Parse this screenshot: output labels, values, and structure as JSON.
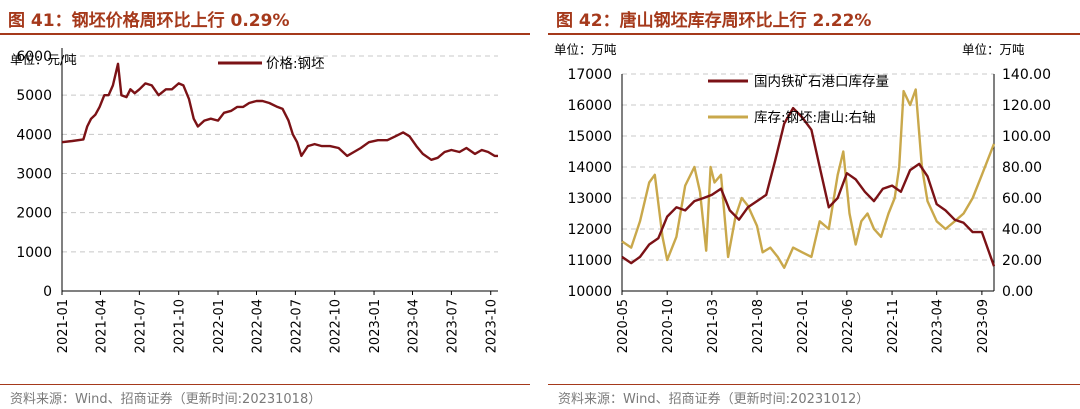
{
  "left": {
    "title": "图 41：钢坯价格周环比上行 0.29%",
    "source": "资料来源：Wind、招商证券（更新时间:20231018）",
    "accent": "#a5391b"
  },
  "right": {
    "title": "图 42：唐山钢坯库存周环比上行 2.22%",
    "source": "资料来源：Wind、招商证券（更新时间:20231012）",
    "accent": "#a5391b"
  },
  "chart_data": [
    {
      "type": "line",
      "title": "",
      "ylabel": "单位：元/吨",
      "ylim": [
        0,
        6000
      ],
      "yticks": [
        "0",
        "1000",
        "2000",
        "3000",
        "4000",
        "5000",
        "6000"
      ],
      "x_range": [
        "2021-01-01",
        "2023-10-18"
      ],
      "x_tick_labels": [
        "2021-01",
        "2021-04",
        "2021-07",
        "2021-10",
        "2022-01",
        "2022-04",
        "2022-07",
        "2022-10",
        "2023-01",
        "2023-04",
        "2023-07",
        "2023-10"
      ],
      "legend_position": "top-center",
      "grid": true,
      "series": [
        {
          "name": "价格:钢坯",
          "color": "#7b1216",
          "points": [
            [
              "2021-01-01",
              3800
            ],
            [
              "2021-01-25",
              3830
            ],
            [
              "2021-02-20",
              3870
            ],
            [
              "2021-03-01",
              4200
            ],
            [
              "2021-03-10",
              4400
            ],
            [
              "2021-03-20",
              4500
            ],
            [
              "2021-03-30",
              4700
            ],
            [
              "2021-04-10",
              5000
            ],
            [
              "2021-04-20",
              5000
            ],
            [
              "2021-04-30",
              5250
            ],
            [
              "2021-05-12",
              5800
            ],
            [
              "2021-05-20",
              5000
            ],
            [
              "2021-06-01",
              4950
            ],
            [
              "2021-06-10",
              5150
            ],
            [
              "2021-06-20",
              5050
            ],
            [
              "2021-07-01",
              5150
            ],
            [
              "2021-07-15",
              5300
            ],
            [
              "2021-07-30",
              5250
            ],
            [
              "2021-08-15",
              5000
            ],
            [
              "2021-09-01",
              5150
            ],
            [
              "2021-09-15",
              5150
            ],
            [
              "2021-10-01",
              5300
            ],
            [
              "2021-10-12",
              5250
            ],
            [
              "2021-10-25",
              4900
            ],
            [
              "2021-11-05",
              4400
            ],
            [
              "2021-11-15",
              4200
            ],
            [
              "2021-11-30",
              4350
            ],
            [
              "2021-12-15",
              4400
            ],
            [
              "2022-01-01",
              4350
            ],
            [
              "2022-01-15",
              4550
            ],
            [
              "2022-02-01",
              4600
            ],
            [
              "2022-02-15",
              4700
            ],
            [
              "2022-03-01",
              4700
            ],
            [
              "2022-03-15",
              4800
            ],
            [
              "2022-04-01",
              4850
            ],
            [
              "2022-04-15",
              4850
            ],
            [
              "2022-05-01",
              4800
            ],
            [
              "2022-05-20",
              4700
            ],
            [
              "2022-06-01",
              4650
            ],
            [
              "2022-06-15",
              4350
            ],
            [
              "2022-06-25",
              4000
            ],
            [
              "2022-07-05",
              3800
            ],
            [
              "2022-07-15",
              3450
            ],
            [
              "2022-07-30",
              3700
            ],
            [
              "2022-08-15",
              3750
            ],
            [
              "2022-09-01",
              3700
            ],
            [
              "2022-09-20",
              3700
            ],
            [
              "2022-10-10",
              3650
            ],
            [
              "2022-10-30",
              3450
            ],
            [
              "2022-11-15",
              3550
            ],
            [
              "2022-12-01",
              3650
            ],
            [
              "2022-12-20",
              3800
            ],
            [
              "2023-01-10",
              3850
            ],
            [
              "2023-02-01",
              3850
            ],
            [
              "2023-02-20",
              3950
            ],
            [
              "2023-03-10",
              4050
            ],
            [
              "2023-03-25",
              3950
            ],
            [
              "2023-04-10",
              3700
            ],
            [
              "2023-04-25",
              3500
            ],
            [
              "2023-05-15",
              3350
            ],
            [
              "2023-05-30",
              3400
            ],
            [
              "2023-06-15",
              3550
            ],
            [
              "2023-07-01",
              3600
            ],
            [
              "2023-07-20",
              3550
            ],
            [
              "2023-08-05",
              3650
            ],
            [
              "2023-08-25",
              3500
            ],
            [
              "2023-09-10",
              3600
            ],
            [
              "2023-09-25",
              3550
            ],
            [
              "2023-10-10",
              3450
            ],
            [
              "2023-10-18",
              3450
            ]
          ]
        }
      ]
    },
    {
      "type": "line",
      "title": "",
      "ylabel_left": "单位：万吨",
      "ylabel_right": "单位：万吨",
      "ylim_left": [
        10000,
        17000
      ],
      "ylim_right": [
        0,
        140
      ],
      "yticks_left": [
        "10000",
        "11000",
        "12000",
        "13000",
        "14000",
        "15000",
        "16000",
        "17000"
      ],
      "yticks_right": [
        "0.00",
        "20.00",
        "40.00",
        "60.00",
        "80.00",
        "100.00",
        "120.00",
        "140.00"
      ],
      "x_range": [
        "2020-05-01",
        "2023-10-12"
      ],
      "x_tick_labels": [
        "2020-05",
        "2020-10",
        "2021-03",
        "2021-08",
        "2022-01",
        "2022-06",
        "2022-11",
        "2023-04",
        "2023-09"
      ],
      "legend_position": "top-left",
      "grid": true,
      "series": [
        {
          "name": "国内铁矿石港口库存量",
          "axis": "left",
          "color": "#7b1216",
          "points": [
            [
              "2020-05-01",
              11100
            ],
            [
              "2020-06-01",
              10900
            ],
            [
              "2020-07-01",
              11100
            ],
            [
              "2020-08-01",
              11500
            ],
            [
              "2020-09-01",
              11700
            ],
            [
              "2020-10-01",
              12400
            ],
            [
              "2020-11-01",
              12700
            ],
            [
              "2020-12-01",
              12600
            ],
            [
              "2021-01-01",
              12900
            ],
            [
              "2021-02-01",
              13000
            ],
            [
              "2021-03-01",
              13100
            ],
            [
              "2021-04-01",
              13300
            ],
            [
              "2021-05-01",
              12600
            ],
            [
              "2021-06-01",
              12300
            ],
            [
              "2021-07-01",
              12700
            ],
            [
              "2021-08-01",
              12900
            ],
            [
              "2021-09-01",
              13100
            ],
            [
              "2021-10-01",
              14200
            ],
            [
              "2021-11-01",
              15400
            ],
            [
              "2021-12-01",
              15900
            ],
            [
              "2022-01-01",
              15600
            ],
            [
              "2022-02-01",
              15200
            ],
            [
              "2022-03-01",
              14000
            ],
            [
              "2022-04-01",
              12700
            ],
            [
              "2022-05-01",
              13000
            ],
            [
              "2022-06-01",
              13800
            ],
            [
              "2022-07-01",
              13600
            ],
            [
              "2022-08-01",
              13200
            ],
            [
              "2022-09-01",
              12900
            ],
            [
              "2022-10-01",
              13300
            ],
            [
              "2022-11-01",
              13400
            ],
            [
              "2022-12-01",
              13200
            ],
            [
              "2023-01-01",
              13900
            ],
            [
              "2023-02-01",
              14100
            ],
            [
              "2023-03-01",
              13700
            ],
            [
              "2023-04-01",
              12800
            ],
            [
              "2023-05-01",
              12600
            ],
            [
              "2023-06-01",
              12300
            ],
            [
              "2023-07-01",
              12200
            ],
            [
              "2023-08-01",
              11900
            ],
            [
              "2023-09-01",
              11900
            ],
            [
              "2023-10-12",
              10800
            ]
          ]
        },
        {
          "name": "库存:钢坯:唐山:右轴",
          "axis": "right",
          "color": "#c9a84b",
          "points": [
            [
              "2020-05-01",
              32
            ],
            [
              "2020-06-01",
              28
            ],
            [
              "2020-07-01",
              45
            ],
            [
              "2020-08-01",
              70
            ],
            [
              "2020-08-20",
              75
            ],
            [
              "2020-09-15",
              35
            ],
            [
              "2020-10-01",
              20
            ],
            [
              "2020-11-01",
              35
            ],
            [
              "2020-12-01",
              68
            ],
            [
              "2021-01-01",
              80
            ],
            [
              "2021-01-20",
              64
            ],
            [
              "2021-02-10",
              26
            ],
            [
              "2021-02-25",
              80
            ],
            [
              "2021-03-10",
              70
            ],
            [
              "2021-04-01",
              75
            ],
            [
              "2021-04-25",
              22
            ],
            [
              "2021-05-20",
              48
            ],
            [
              "2021-06-10",
              60
            ],
            [
              "2021-07-01",
              55
            ],
            [
              "2021-08-01",
              42
            ],
            [
              "2021-08-20",
              25
            ],
            [
              "2021-09-15",
              28
            ],
            [
              "2021-10-10",
              22
            ],
            [
              "2021-11-01",
              15
            ],
            [
              "2021-12-01",
              28
            ],
            [
              "2022-01-01",
              25
            ],
            [
              "2022-02-01",
              22
            ],
            [
              "2022-03-01",
              45
            ],
            [
              "2022-04-01",
              40
            ],
            [
              "2022-05-01",
              75
            ],
            [
              "2022-05-20",
              90
            ],
            [
              "2022-06-10",
              50
            ],
            [
              "2022-07-01",
              30
            ],
            [
              "2022-07-20",
              45
            ],
            [
              "2022-08-10",
              50
            ],
            [
              "2022-09-01",
              40
            ],
            [
              "2022-09-25",
              35
            ],
            [
              "2022-10-20",
              50
            ],
            [
              "2022-11-10",
              60
            ],
            [
              "2022-11-25",
              80
            ],
            [
              "2022-12-10",
              129
            ],
            [
              "2023-01-01",
              120
            ],
            [
              "2023-01-20",
              130
            ],
            [
              "2023-02-10",
              80
            ],
            [
              "2023-03-01",
              58
            ],
            [
              "2023-04-01",
              45
            ],
            [
              "2023-05-01",
              40
            ],
            [
              "2023-06-01",
              45
            ],
            [
              "2023-07-01",
              50
            ],
            [
              "2023-08-01",
              60
            ],
            [
              "2023-09-01",
              75
            ],
            [
              "2023-10-12",
              95
            ]
          ]
        }
      ]
    }
  ]
}
